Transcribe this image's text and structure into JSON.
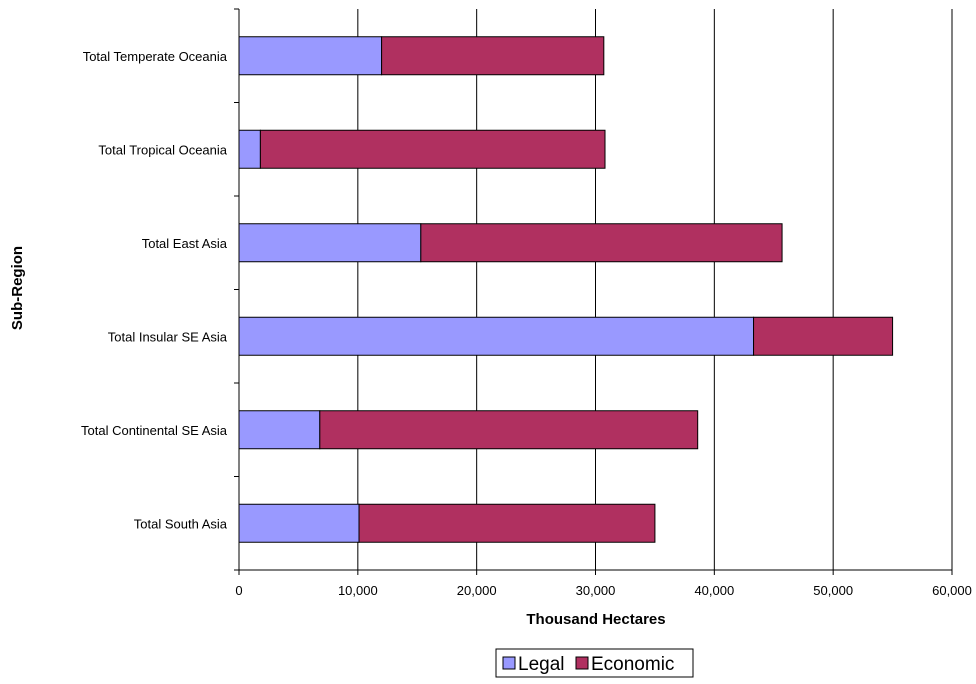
{
  "chart_data": {
    "type": "bar",
    "orientation": "horizontal",
    "stacked": true,
    "categories": [
      "Total South Asia",
      "Total Continental SE Asia",
      "Total Insular SE Asia",
      "Total East Asia",
      "Total Tropical Oceania",
      "Total Temperate Oceania"
    ],
    "series": [
      {
        "name": "Legal",
        "color": "#9999ff",
        "values": [
          10100,
          6800,
          43300,
          15300,
          1800,
          12000
        ]
      },
      {
        "name": "Economic",
        "color": "#b03060",
        "values": [
          24900,
          31800,
          11700,
          30400,
          29000,
          18700
        ]
      }
    ],
    "xlabel": "Thousand Hectares",
    "ylabel": "Sub-Region",
    "xlim": [
      0,
      60000
    ],
    "xticks": [
      0,
      10000,
      20000,
      30000,
      40000,
      50000,
      60000
    ],
    "xtick_labels": [
      "0",
      "10,000",
      "20,000",
      "30,000",
      "40,000",
      "50,000",
      "60,000"
    ],
    "grid": "vertical",
    "legend": "bottom"
  }
}
